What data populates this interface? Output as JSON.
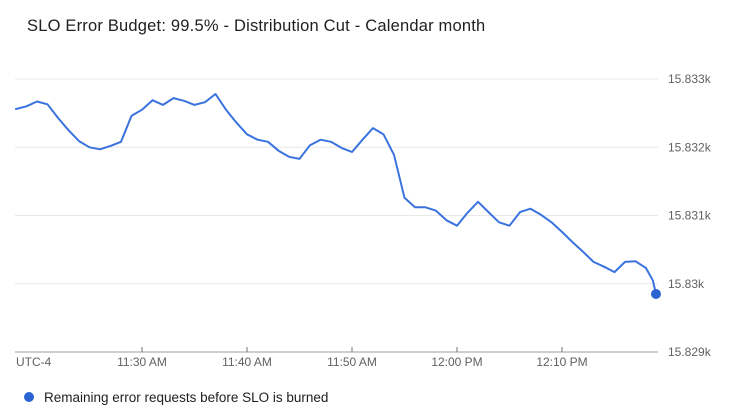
{
  "chart_data": {
    "type": "line",
    "title": "SLO Error Budget: 99.5% - Distribution Cut - Calendar month",
    "legend": {
      "label": "Remaining error requests before SLO is burned",
      "position": "bottom-left"
    },
    "colors": {
      "line": "#3a73de",
      "end_dot": "#2b64d2",
      "grid": "#e8e8e8",
      "axis_line": "#9e9e9e",
      "tick": "#757575",
      "axis_label": "#616161",
      "title_text": "#202124",
      "legend_text": "#212121",
      "background": "#ffffff"
    },
    "grid": true,
    "x_axis": {
      "start_label": "UTC-4",
      "start_time": "11:18 AM",
      "end_time": "12:19 PM",
      "minutes_range": [
        0,
        61.2
      ],
      "ticks": [
        {
          "minute": 12,
          "label": "11:30 AM"
        },
        {
          "minute": 22,
          "label": "11:40 AM"
        },
        {
          "minute": 32,
          "label": "11:50 AM"
        },
        {
          "minute": 42,
          "label": "12:00 PM"
        },
        {
          "minute": 52,
          "label": "12:10 PM"
        }
      ]
    },
    "y_axis": {
      "side": "right",
      "min": 15829,
      "max": 15833,
      "ticks": [
        {
          "value": 15833,
          "label": "15.833k"
        },
        {
          "value": 15832,
          "label": "15.832k"
        },
        {
          "value": 15831,
          "label": "15.831k"
        },
        {
          "value": 15830,
          "label": "15.83k"
        },
        {
          "value": 15829,
          "label": "15.829k"
        }
      ]
    },
    "series": [
      {
        "name": "Remaining error requests before SLO is burned",
        "minutes": [
          0,
          1,
          2,
          3,
          4,
          5,
          6,
          7,
          8,
          9,
          10,
          11,
          12,
          13,
          14,
          15,
          16,
          17,
          18,
          19,
          20,
          21,
          22,
          23,
          24,
          25,
          26,
          27,
          28,
          29,
          30,
          31,
          32,
          33,
          34,
          35,
          36,
          37,
          38,
          39,
          40,
          41,
          42,
          43,
          44,
          45,
          46,
          47,
          48,
          49,
          50,
          51,
          52,
          53,
          54,
          55,
          56,
          57,
          58,
          59,
          60,
          60.65,
          60.95
        ],
        "values": [
          15832.56,
          15832.6,
          15832.67,
          15832.63,
          15832.43,
          15832.25,
          15832.09,
          15832.0,
          15831.97,
          15832.02,
          15832.08,
          15832.46,
          15832.55,
          15832.69,
          15832.62,
          15832.72,
          15832.68,
          15832.62,
          15832.66,
          15832.78,
          15832.55,
          15832.36,
          15832.19,
          15832.11,
          15832.08,
          15831.95,
          15831.86,
          15831.83,
          15832.03,
          15832.11,
          15832.08,
          15831.99,
          15831.93,
          15832.11,
          15832.28,
          15832.19,
          15831.89,
          15831.26,
          15831.12,
          15831.12,
          15831.07,
          15830.93,
          15830.85,
          15831.04,
          15831.2,
          15831.05,
          15830.9,
          15830.85,
          15831.05,
          15831.1,
          15831.01,
          15830.9,
          15830.76,
          15830.61,
          15830.47,
          15830.32,
          15830.25,
          15830.17,
          15830.32,
          15830.33,
          15830.23,
          15830.05,
          15829.85
        ],
        "last_value_label": "15.83k"
      }
    ]
  }
}
